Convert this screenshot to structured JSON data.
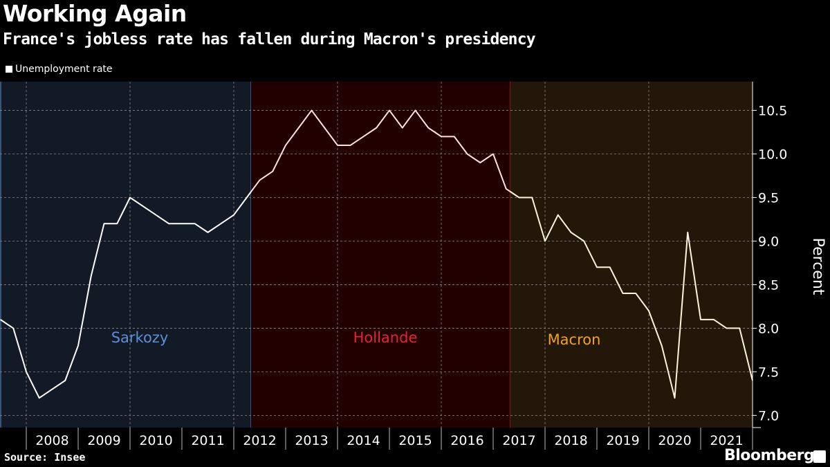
{
  "title": "Working Again",
  "subtitle": "France's jobless rate has fallen during Macron's presidency",
  "source": "Source: Insee",
  "brand": "Bloomberg",
  "chart_data": {
    "type": "line",
    "title": "Working Again",
    "subtitle": "France's jobless rate has fallen during Macron's presidency",
    "ylabel": "Percent",
    "xlabel": "",
    "ylim": [
      6.86,
      10.83
    ],
    "xlim": [
      "2007-Q3",
      "2022-Q1"
    ],
    "yticks": [
      "7.0",
      "7.5",
      "8.0",
      "8.5",
      "9.0",
      "9.5",
      "10.0",
      "10.5"
    ],
    "xticks": [
      "2008",
      "2009",
      "2010",
      "2011",
      "2012",
      "2013",
      "2014",
      "2015",
      "2016",
      "2017",
      "2018",
      "2019",
      "2020",
      "2021"
    ],
    "grid": true,
    "y_axis_side": "right",
    "legend": {
      "position": "top-left",
      "entries": [
        "Unemployment rate"
      ]
    },
    "periods": [
      {
        "name": "Sarkozy",
        "start": "2007-05",
        "end": "2012-05",
        "background": "#121b25",
        "color": "#5d8fd8",
        "line_color": "#ffffff"
      },
      {
        "name": "Hollande",
        "start": "2012-05",
        "end": "2017-05",
        "background": "#230000",
        "color": "#e5213b",
        "line_color": "#ffe3e3"
      },
      {
        "name": "Macron",
        "start": "2017-05",
        "end": "2022-03",
        "background": "#23170a",
        "color": "#f2a21e",
        "line_color": "#fff4de"
      }
    ],
    "series": [
      {
        "name": "Unemployment rate",
        "x": [
          "2007-Q3",
          "2007-Q4",
          "2008-Q1",
          "2008-Q2",
          "2008-Q3",
          "2008-Q4",
          "2009-Q1",
          "2009-Q2",
          "2009-Q3",
          "2009-Q4",
          "2010-Q1",
          "2010-Q2",
          "2010-Q3",
          "2010-Q4",
          "2011-Q1",
          "2011-Q2",
          "2011-Q3",
          "2011-Q4",
          "2012-Q1",
          "2012-Q2",
          "2012-Q3",
          "2012-Q4",
          "2013-Q1",
          "2013-Q2",
          "2013-Q3",
          "2013-Q4",
          "2014-Q1",
          "2014-Q2",
          "2014-Q3",
          "2014-Q4",
          "2015-Q1",
          "2015-Q2",
          "2015-Q3",
          "2015-Q4",
          "2016-Q1",
          "2016-Q2",
          "2016-Q3",
          "2016-Q4",
          "2017-Q1",
          "2017-Q2",
          "2017-Q3",
          "2017-Q4",
          "2018-Q1",
          "2018-Q2",
          "2018-Q3",
          "2018-Q4",
          "2019-Q1",
          "2019-Q2",
          "2019-Q3",
          "2019-Q4",
          "2020-Q1",
          "2020-Q2",
          "2020-Q3",
          "2020-Q4",
          "2021-Q1",
          "2021-Q2",
          "2021-Q3",
          "2021-Q4",
          "2022-Q1"
        ],
        "values": [
          8.1,
          8.0,
          7.5,
          7.2,
          7.3,
          7.4,
          7.8,
          8.6,
          9.2,
          9.2,
          9.5,
          9.4,
          9.3,
          9.2,
          9.2,
          9.2,
          9.1,
          9.2,
          9.3,
          9.5,
          9.7,
          9.8,
          10.1,
          10.3,
          10.5,
          10.3,
          10.1,
          10.1,
          10.2,
          10.3,
          10.5,
          10.3,
          10.5,
          10.3,
          10.2,
          10.2,
          10.0,
          9.9,
          10.0,
          9.6,
          9.5,
          9.5,
          9.0,
          9.3,
          9.1,
          9.0,
          8.7,
          8.7,
          8.4,
          8.4,
          8.2,
          7.8,
          7.2,
          9.1,
          8.1,
          8.1,
          8.0,
          8.0,
          7.4
        ]
      }
    ]
  }
}
